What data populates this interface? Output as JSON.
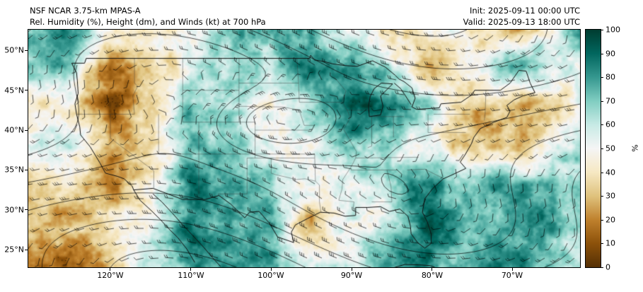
{
  "header": {
    "title_line1": "NSF NCAR 3.75-km MPAS-A",
    "title_line2": "Rel. Humidity (%), Height (dm), and Winds (kt) at 700 hPa",
    "init_time": "Init: 2025-09-11 00:00 UTC",
    "valid_time": "Valid: 2025-09-13 18:00 UTC"
  },
  "chart_data": {
    "type": "heatmap",
    "title": "Rel. Humidity (%), Height (dm), and Winds (kt) at 700 hPa",
    "model": "NSF NCAR 3.75-km MPAS-A",
    "level": "700 hPa",
    "field": "Relative Humidity (%)",
    "overlays": [
      "Geopotential height contours (dm)",
      "Wind barbs (kt)"
    ],
    "x_axis": {
      "tick_labels": [
        "120°W",
        "110°W",
        "100°W",
        "90°W",
        "80°W",
        "70°W"
      ],
      "tick_lons": [
        -120,
        -110,
        -100,
        -90,
        -80,
        -70
      ],
      "range_lon": [
        -130.2,
        -61.6
      ]
    },
    "y_axis": {
      "tick_labels": [
        "50°N",
        "45°N",
        "40°N",
        "35°N",
        "30°N",
        "25°N"
      ],
      "tick_lats": [
        50,
        45,
        40,
        35,
        30,
        25
      ],
      "range_lat": [
        22.8,
        52.6
      ]
    },
    "colorbar": {
      "label": "%",
      "range": [
        0,
        100
      ],
      "ticks": [
        0,
        10,
        20,
        30,
        40,
        50,
        60,
        70,
        80,
        90,
        100
      ],
      "tick_labels_top_to_bottom": [
        "100",
        "90",
        "80",
        "70",
        "60",
        "50",
        "40",
        "30",
        "20",
        "10",
        "0"
      ],
      "colors_low_to_high": [
        "#543005",
        "#8c510a",
        "#bf812d",
        "#dfc27d",
        "#f6e8c3",
        "#f5f5f5",
        "#c7eae5",
        "#80cdc1",
        "#35978f",
        "#01665e",
        "#003c30"
      ]
    },
    "rh_grid": {
      "lons": [
        -130,
        -125,
        -120,
        -115,
        -110,
        -105,
        -100,
        -95,
        -90,
        -85,
        -80,
        -75,
        -70,
        -65,
        -60
      ],
      "lats": [
        53,
        48,
        43,
        38,
        33,
        28,
        23
      ],
      "values": [
        [
          85,
          75,
          35,
          35,
          55,
          70,
          65,
          70,
          60,
          35,
          55,
          45,
          30,
          60,
          80
        ],
        [
          75,
          80,
          20,
          25,
          60,
          75,
          70,
          80,
          75,
          55,
          35,
          55,
          85,
          60,
          45
        ],
        [
          45,
          40,
          15,
          30,
          70,
          65,
          50,
          70,
          85,
          80,
          55,
          30,
          25,
          40,
          55
        ],
        [
          55,
          50,
          25,
          35,
          75,
          80,
          55,
          60,
          70,
          65,
          45,
          25,
          20,
          55,
          65
        ],
        [
          35,
          30,
          20,
          35,
          80,
          70,
          60,
          40,
          55,
          70,
          80,
          70,
          75,
          80,
          75
        ],
        [
          25,
          25,
          30,
          50,
          85,
          75,
          70,
          30,
          45,
          60,
          85,
          80,
          85,
          75,
          70
        ],
        [
          20,
          25,
          40,
          60,
          80,
          85,
          75,
          60,
          55,
          70,
          80,
          85,
          80,
          70,
          65
        ]
      ]
    }
  }
}
